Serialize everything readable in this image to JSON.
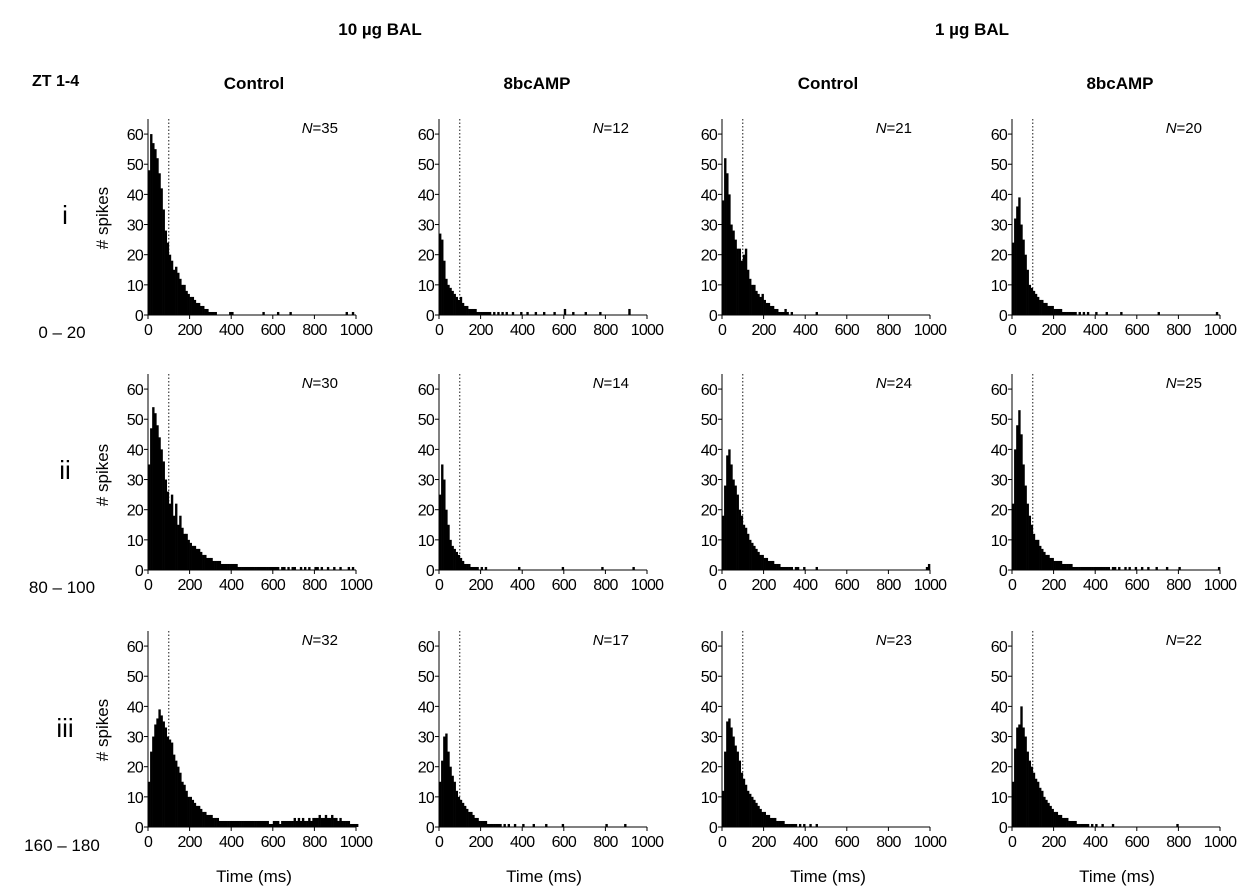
{
  "figure": {
    "group_labels": [
      "10 µg BAL",
      "1 µg BAL"
    ],
    "condition_labels": [
      "Control",
      "8bcAMP",
      "Control",
      "8bcAMP"
    ],
    "zt_label": "ZT 1-4",
    "row_labels": [
      "i",
      "ii",
      "iii"
    ],
    "row_time_labels": [
      "0 – 20",
      "80 – 100",
      "160 – 180"
    ],
    "ylabel": "# spikes",
    "xlabel": "Time (ms)",
    "n_prefix": "N",
    "x_ticks": [
      0,
      200,
      400,
      600,
      800,
      1000
    ],
    "y_ticks": [
      0,
      10,
      20,
      30,
      40,
      50,
      60
    ],
    "reference_line_ms": 100
  },
  "chart_data": [
    {
      "type": "bar",
      "row": "i",
      "group": "10 µg BAL",
      "condition": "Control",
      "n": "35",
      "xlim": [
        0,
        1000
      ],
      "ylim": [
        0,
        65
      ],
      "bin_ms": 10,
      "values": [
        48,
        60,
        57,
        55,
        52,
        47,
        42,
        35,
        28,
        24,
        20,
        18,
        15,
        16,
        14,
        12,
        10,
        10,
        8,
        7,
        6,
        6,
        5,
        4,
        4,
        3,
        3,
        2,
        2,
        1,
        1,
        1,
        1,
        0,
        0,
        0,
        0,
        0,
        0,
        1,
        1,
        0,
        0,
        0,
        0,
        0,
        0,
        0,
        0,
        0,
        0,
        0,
        0,
        0,
        0,
        1,
        0,
        0,
        0,
        0,
        0,
        0,
        1,
        0,
        0,
        0,
        0,
        0,
        1,
        0,
        0,
        0,
        0,
        0,
        0,
        0,
        0,
        0,
        0,
        0,
        0,
        0,
        0,
        0,
        0,
        0,
        0,
        0,
        0,
        0,
        0,
        0,
        0,
        0,
        0,
        1,
        0,
        0,
        1,
        0,
        0
      ]
    },
    {
      "type": "bar",
      "row": "i",
      "group": "10 µg BAL",
      "condition": "8bcAMP",
      "n": "12",
      "xlim": [
        0,
        1000
      ],
      "ylim": [
        0,
        65
      ],
      "bin_ms": 10,
      "values": [
        27,
        25,
        18,
        12,
        10,
        9,
        8,
        7,
        6,
        5,
        6,
        4,
        3,
        3,
        2,
        2,
        2,
        2,
        1,
        1,
        1,
        1,
        1,
        1,
        1,
        0,
        1,
        0,
        1,
        0,
        1,
        0,
        1,
        0,
        0,
        1,
        0,
        0,
        0,
        1,
        0,
        0,
        1,
        0,
        0,
        0,
        1,
        0,
        0,
        0,
        1,
        0,
        0,
        0,
        0,
        1,
        0,
        0,
        0,
        0,
        2,
        0,
        0,
        0,
        1,
        0,
        0,
        0,
        0,
        0,
        1,
        0,
        0,
        0,
        0,
        0,
        0,
        1,
        0,
        0,
        0,
        0,
        0,
        0,
        0,
        0,
        0,
        0,
        0,
        0,
        0,
        2,
        0,
        0,
        0,
        0,
        0,
        0,
        0,
        0,
        0
      ]
    },
    {
      "type": "bar",
      "row": "i",
      "group": "1 µg BAL",
      "condition": "Control",
      "n": "21",
      "xlim": [
        0,
        1000
      ],
      "ylim": [
        0,
        65
      ],
      "bin_ms": 10,
      "values": [
        38,
        52,
        47,
        40,
        30,
        28,
        25,
        22,
        22,
        18,
        20,
        22,
        15,
        12,
        10,
        10,
        8,
        7,
        6,
        7,
        5,
        4,
        4,
        3,
        3,
        2,
        2,
        1,
        1,
        1,
        2,
        1,
        0,
        1,
        0,
        0,
        0,
        0,
        0,
        0,
        0,
        0,
        0,
        0,
        0,
        1,
        0,
        0,
        0,
        0,
        0,
        0,
        0,
        0,
        0,
        0,
        0,
        0,
        0,
        0,
        0,
        0,
        0,
        0,
        0,
        0,
        0,
        0,
        0,
        0,
        0,
        0,
        0,
        0,
        0,
        0,
        0,
        0,
        0,
        0,
        0,
        0,
        0,
        0,
        0,
        0,
        0,
        0,
        0,
        0,
        0,
        0,
        0,
        0,
        0,
        0,
        0,
        0,
        0,
        0,
        0
      ]
    },
    {
      "type": "bar",
      "row": "i",
      "group": "1 µg BAL",
      "condition": "8bcAMP",
      "n": "20",
      "xlim": [
        0,
        1000
      ],
      "ylim": [
        0,
        65
      ],
      "bin_ms": 10,
      "values": [
        24,
        32,
        36,
        39,
        30,
        25,
        20,
        15,
        10,
        9,
        8,
        7,
        6,
        5,
        5,
        4,
        4,
        3,
        3,
        3,
        2,
        2,
        2,
        2,
        1,
        1,
        1,
        1,
        1,
        1,
        1,
        0,
        1,
        0,
        1,
        0,
        1,
        0,
        0,
        0,
        1,
        0,
        0,
        0,
        0,
        1,
        0,
        0,
        0,
        0,
        0,
        0,
        1,
        0,
        0,
        0,
        0,
        0,
        0,
        0,
        0,
        0,
        0,
        0,
        0,
        0,
        0,
        0,
        0,
        0,
        1,
        0,
        0,
        0,
        0,
        0,
        0,
        0,
        0,
        0,
        0,
        0,
        0,
        0,
        0,
        0,
        0,
        0,
        0,
        0,
        0,
        0,
        0,
        0,
        0,
        0,
        0,
        0,
        1,
        0,
        0
      ]
    },
    {
      "type": "bar",
      "row": "ii",
      "group": "10 µg BAL",
      "condition": "Control",
      "n": "30",
      "xlim": [
        0,
        1000
      ],
      "ylim": [
        0,
        65
      ],
      "bin_ms": 10,
      "values": [
        35,
        47,
        54,
        52,
        48,
        44,
        40,
        36,
        30,
        26,
        22,
        25,
        18,
        22,
        15,
        18,
        14,
        12,
        12,
        10,
        9,
        8,
        8,
        7,
        7,
        6,
        5,
        5,
        4,
        4,
        4,
        3,
        3,
        3,
        3,
        2,
        2,
        2,
        2,
        2,
        2,
        2,
        2,
        1,
        1,
        1,
        1,
        1,
        1,
        1,
        1,
        1,
        1,
        1,
        1,
        1,
        1,
        1,
        1,
        1,
        1,
        1,
        1,
        0,
        1,
        1,
        0,
        1,
        0,
        1,
        1,
        0,
        0,
        1,
        0,
        1,
        0,
        1,
        0,
        0,
        1,
        1,
        0,
        1,
        0,
        0,
        1,
        0,
        0,
        1,
        0,
        0,
        1,
        0,
        0,
        0,
        1,
        0,
        1,
        0,
        0
      ]
    },
    {
      "type": "bar",
      "row": "ii",
      "group": "10 µg BAL",
      "condition": "8bcAMP",
      "n": "14",
      "xlim": [
        0,
        1000
      ],
      "ylim": [
        0,
        65
      ],
      "bin_ms": 10,
      "values": [
        25,
        35,
        30,
        20,
        15,
        10,
        8,
        7,
        6,
        5,
        4,
        3,
        2,
        2,
        2,
        1,
        1,
        1,
        1,
        0,
        1,
        0,
        1,
        0,
        0,
        0,
        0,
        0,
        0,
        0,
        0,
        0,
        0,
        0,
        0,
        0,
        0,
        0,
        1,
        0,
        0,
        0,
        0,
        0,
        0,
        0,
        0,
        0,
        0,
        0,
        0,
        0,
        0,
        0,
        0,
        0,
        0,
        0,
        0,
        1,
        0,
        0,
        0,
        0,
        0,
        0,
        0,
        0,
        0,
        0,
        0,
        0,
        0,
        0,
        0,
        0,
        0,
        0,
        1,
        0,
        0,
        0,
        0,
        0,
        0,
        0,
        0,
        0,
        0,
        0,
        0,
        0,
        0,
        1,
        0,
        0,
        0,
        0,
        0,
        0,
        0
      ]
    },
    {
      "type": "bar",
      "row": "ii",
      "group": "1 µg BAL",
      "condition": "Control",
      "n": "24",
      "xlim": [
        0,
        1000
      ],
      "ylim": [
        0,
        65
      ],
      "bin_ms": 10,
      "values": [
        18,
        28,
        38,
        40,
        35,
        30,
        28,
        25,
        20,
        18,
        15,
        14,
        12,
        10,
        9,
        8,
        7,
        6,
        5,
        5,
        4,
        4,
        3,
        3,
        3,
        2,
        2,
        2,
        1,
        1,
        1,
        1,
        1,
        1,
        0,
        1,
        1,
        0,
        0,
        1,
        0,
        0,
        0,
        0,
        0,
        1,
        0,
        0,
        0,
        0,
        0,
        0,
        0,
        0,
        0,
        0,
        0,
        0,
        0,
        0,
        0,
        0,
        0,
        0,
        0,
        0,
        0,
        0,
        0,
        0,
        0,
        0,
        0,
        0,
        0,
        0,
        0,
        0,
        0,
        0,
        0,
        0,
        0,
        0,
        0,
        0,
        0,
        0,
        0,
        0,
        0,
        0,
        0,
        0,
        0,
        0,
        0,
        0,
        1,
        2,
        0
      ]
    },
    {
      "type": "bar",
      "row": "ii",
      "group": "1 µg BAL",
      "condition": "8bcAMP",
      "n": "25",
      "xlim": [
        0,
        1000
      ],
      "ylim": [
        0,
        65
      ],
      "bin_ms": 10,
      "values": [
        22,
        40,
        48,
        53,
        45,
        35,
        28,
        22,
        18,
        15,
        12,
        10,
        10,
        8,
        7,
        6,
        5,
        5,
        4,
        4,
        3,
        3,
        3,
        3,
        2,
        2,
        2,
        2,
        2,
        1,
        1,
        1,
        1,
        1,
        1,
        1,
        1,
        1,
        1,
        1,
        1,
        1,
        1,
        1,
        1,
        1,
        1,
        0,
        1,
        1,
        0,
        1,
        0,
        0,
        1,
        0,
        1,
        0,
        0,
        1,
        0,
        0,
        1,
        0,
        0,
        1,
        0,
        0,
        0,
        1,
        0,
        0,
        0,
        0,
        1,
        0,
        0,
        0,
        0,
        0,
        1,
        0,
        0,
        0,
        0,
        0,
        0,
        0,
        0,
        0,
        0,
        0,
        0,
        0,
        0,
        0,
        0,
        0,
        0,
        1,
        0
      ]
    },
    {
      "type": "bar",
      "row": "iii",
      "group": "10 µg BAL",
      "condition": "Control",
      "n": "32",
      "xlim": [
        0,
        1000
      ],
      "ylim": [
        0,
        65
      ],
      "bin_ms": 10,
      "values": [
        15,
        25,
        30,
        34,
        36,
        39,
        37,
        35,
        33,
        30,
        29,
        28,
        24,
        22,
        20,
        18,
        15,
        14,
        12,
        10,
        10,
        9,
        8,
        7,
        7,
        6,
        5,
        5,
        4,
        4,
        4,
        3,
        3,
        3,
        2,
        2,
        2,
        2,
        2,
        2,
        2,
        2,
        2,
        2,
        2,
        2,
        2,
        2,
        2,
        2,
        2,
        2,
        2,
        2,
        2,
        2,
        2,
        2,
        1,
        1,
        2,
        2,
        2,
        1,
        2,
        2,
        2,
        2,
        2,
        2,
        3,
        2,
        3,
        2,
        3,
        2,
        2,
        3,
        2,
        3,
        3,
        3,
        4,
        3,
        3,
        4,
        3,
        3,
        4,
        3,
        3,
        2,
        3,
        2,
        2,
        2,
        2,
        1,
        1,
        1,
        1
      ]
    },
    {
      "type": "bar",
      "row": "iii",
      "group": "10 µg BAL",
      "condition": "8bcAMP",
      "n": "17",
      "xlim": [
        0,
        1000
      ],
      "ylim": [
        0,
        65
      ],
      "bin_ms": 10,
      "values": [
        15,
        22,
        30,
        31,
        25,
        20,
        17,
        15,
        12,
        10,
        9,
        8,
        7,
        6,
        5,
        5,
        4,
        3,
        3,
        2,
        2,
        2,
        2,
        1,
        1,
        1,
        1,
        1,
        1,
        1,
        0,
        1,
        0,
        1,
        0,
        0,
        1,
        0,
        0,
        0,
        1,
        0,
        0,
        0,
        0,
        1,
        0,
        0,
        0,
        0,
        0,
        1,
        0,
        0,
        0,
        0,
        0,
        0,
        0,
        1,
        0,
        0,
        0,
        0,
        0,
        0,
        0,
        0,
        0,
        0,
        0,
        0,
        0,
        0,
        0,
        0,
        0,
        0,
        0,
        0,
        1,
        0,
        0,
        0,
        0,
        0,
        0,
        0,
        0,
        1,
        0,
        0,
        0,
        0,
        0,
        0,
        0,
        0,
        0,
        0,
        0
      ]
    },
    {
      "type": "bar",
      "row": "iii",
      "group": "1 µg BAL",
      "condition": "Control",
      "n": "23",
      "xlim": [
        0,
        1000
      ],
      "ylim": [
        0,
        65
      ],
      "bin_ms": 10,
      "values": [
        12,
        25,
        35,
        36,
        33,
        30,
        27,
        25,
        22,
        18,
        16,
        14,
        12,
        11,
        10,
        9,
        8,
        7,
        6,
        5,
        5,
        4,
        4,
        3,
        3,
        3,
        2,
        2,
        2,
        2,
        1,
        1,
        1,
        1,
        1,
        1,
        0,
        1,
        0,
        1,
        0,
        0,
        1,
        0,
        0,
        1,
        0,
        0,
        0,
        0,
        0,
        0,
        0,
        0,
        0,
        0,
        0,
        0,
        0,
        0,
        0,
        0,
        0,
        0,
        0,
        0,
        0,
        0,
        0,
        0,
        0,
        0,
        0,
        0,
        0,
        0,
        0,
        0,
        0,
        0,
        0,
        0,
        0,
        0,
        0,
        0,
        0,
        0,
        0,
        0,
        0,
        0,
        0,
        0,
        0,
        0,
        0,
        0,
        0,
        0,
        0
      ]
    },
    {
      "type": "bar",
      "row": "iii",
      "group": "1 µg BAL",
      "condition": "8bcAMP",
      "n": "22",
      "xlim": [
        0,
        1000
      ],
      "ylim": [
        0,
        65
      ],
      "bin_ms": 10,
      "values": [
        15,
        26,
        33,
        34,
        40,
        33,
        30,
        25,
        22,
        20,
        18,
        16,
        15,
        13,
        12,
        10,
        9,
        8,
        7,
        6,
        5,
        5,
        4,
        4,
        3,
        3,
        3,
        2,
        2,
        2,
        2,
        1,
        1,
        1,
        1,
        1,
        1,
        0,
        1,
        0,
        1,
        0,
        0,
        1,
        0,
        0,
        0,
        0,
        1,
        0,
        0,
        0,
        0,
        0,
        0,
        0,
        0,
        0,
        0,
        0,
        0,
        0,
        0,
        0,
        0,
        0,
        0,
        0,
        0,
        0,
        0,
        0,
        0,
        0,
        0,
        0,
        0,
        0,
        0,
        1,
        0,
        0,
        0,
        0,
        0,
        0,
        0,
        0,
        0,
        0,
        0,
        0,
        0,
        0,
        0,
        0,
        0,
        0,
        0,
        0,
        0
      ]
    }
  ]
}
